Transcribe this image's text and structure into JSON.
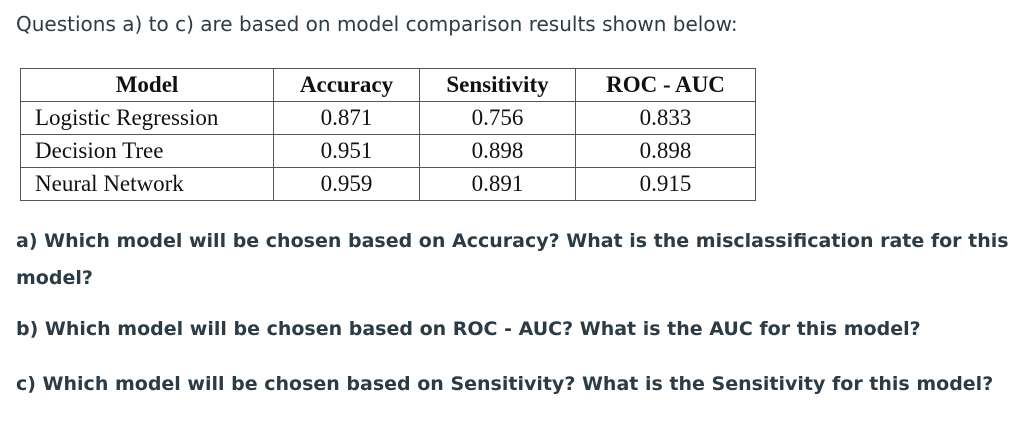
{
  "intro": "Questions a) to c) are based on model comparison results shown below:",
  "table": {
    "header": [
      "Model",
      "Accuracy",
      "Sensitivity",
      "ROC - AUC"
    ],
    "rows": [
      [
        "Logistic Regression",
        "0.871",
        "0.756",
        "0.833"
      ],
      [
        "Decision Tree",
        "0.951",
        "0.898",
        "0.898"
      ],
      [
        "Neural Network",
        "0.959",
        "0.891",
        "0.915"
      ]
    ]
  },
  "questions": [
    "a) Which model will be chosen based on Accuracy? What is the misclassification rate for this model?",
    "b) Which model will be chosen based on ROC - AUC? What is the AUC for this model?",
    "c) Which model will be chosen based on Sensitivity? What is the Sensitivity for this model?"
  ]
}
